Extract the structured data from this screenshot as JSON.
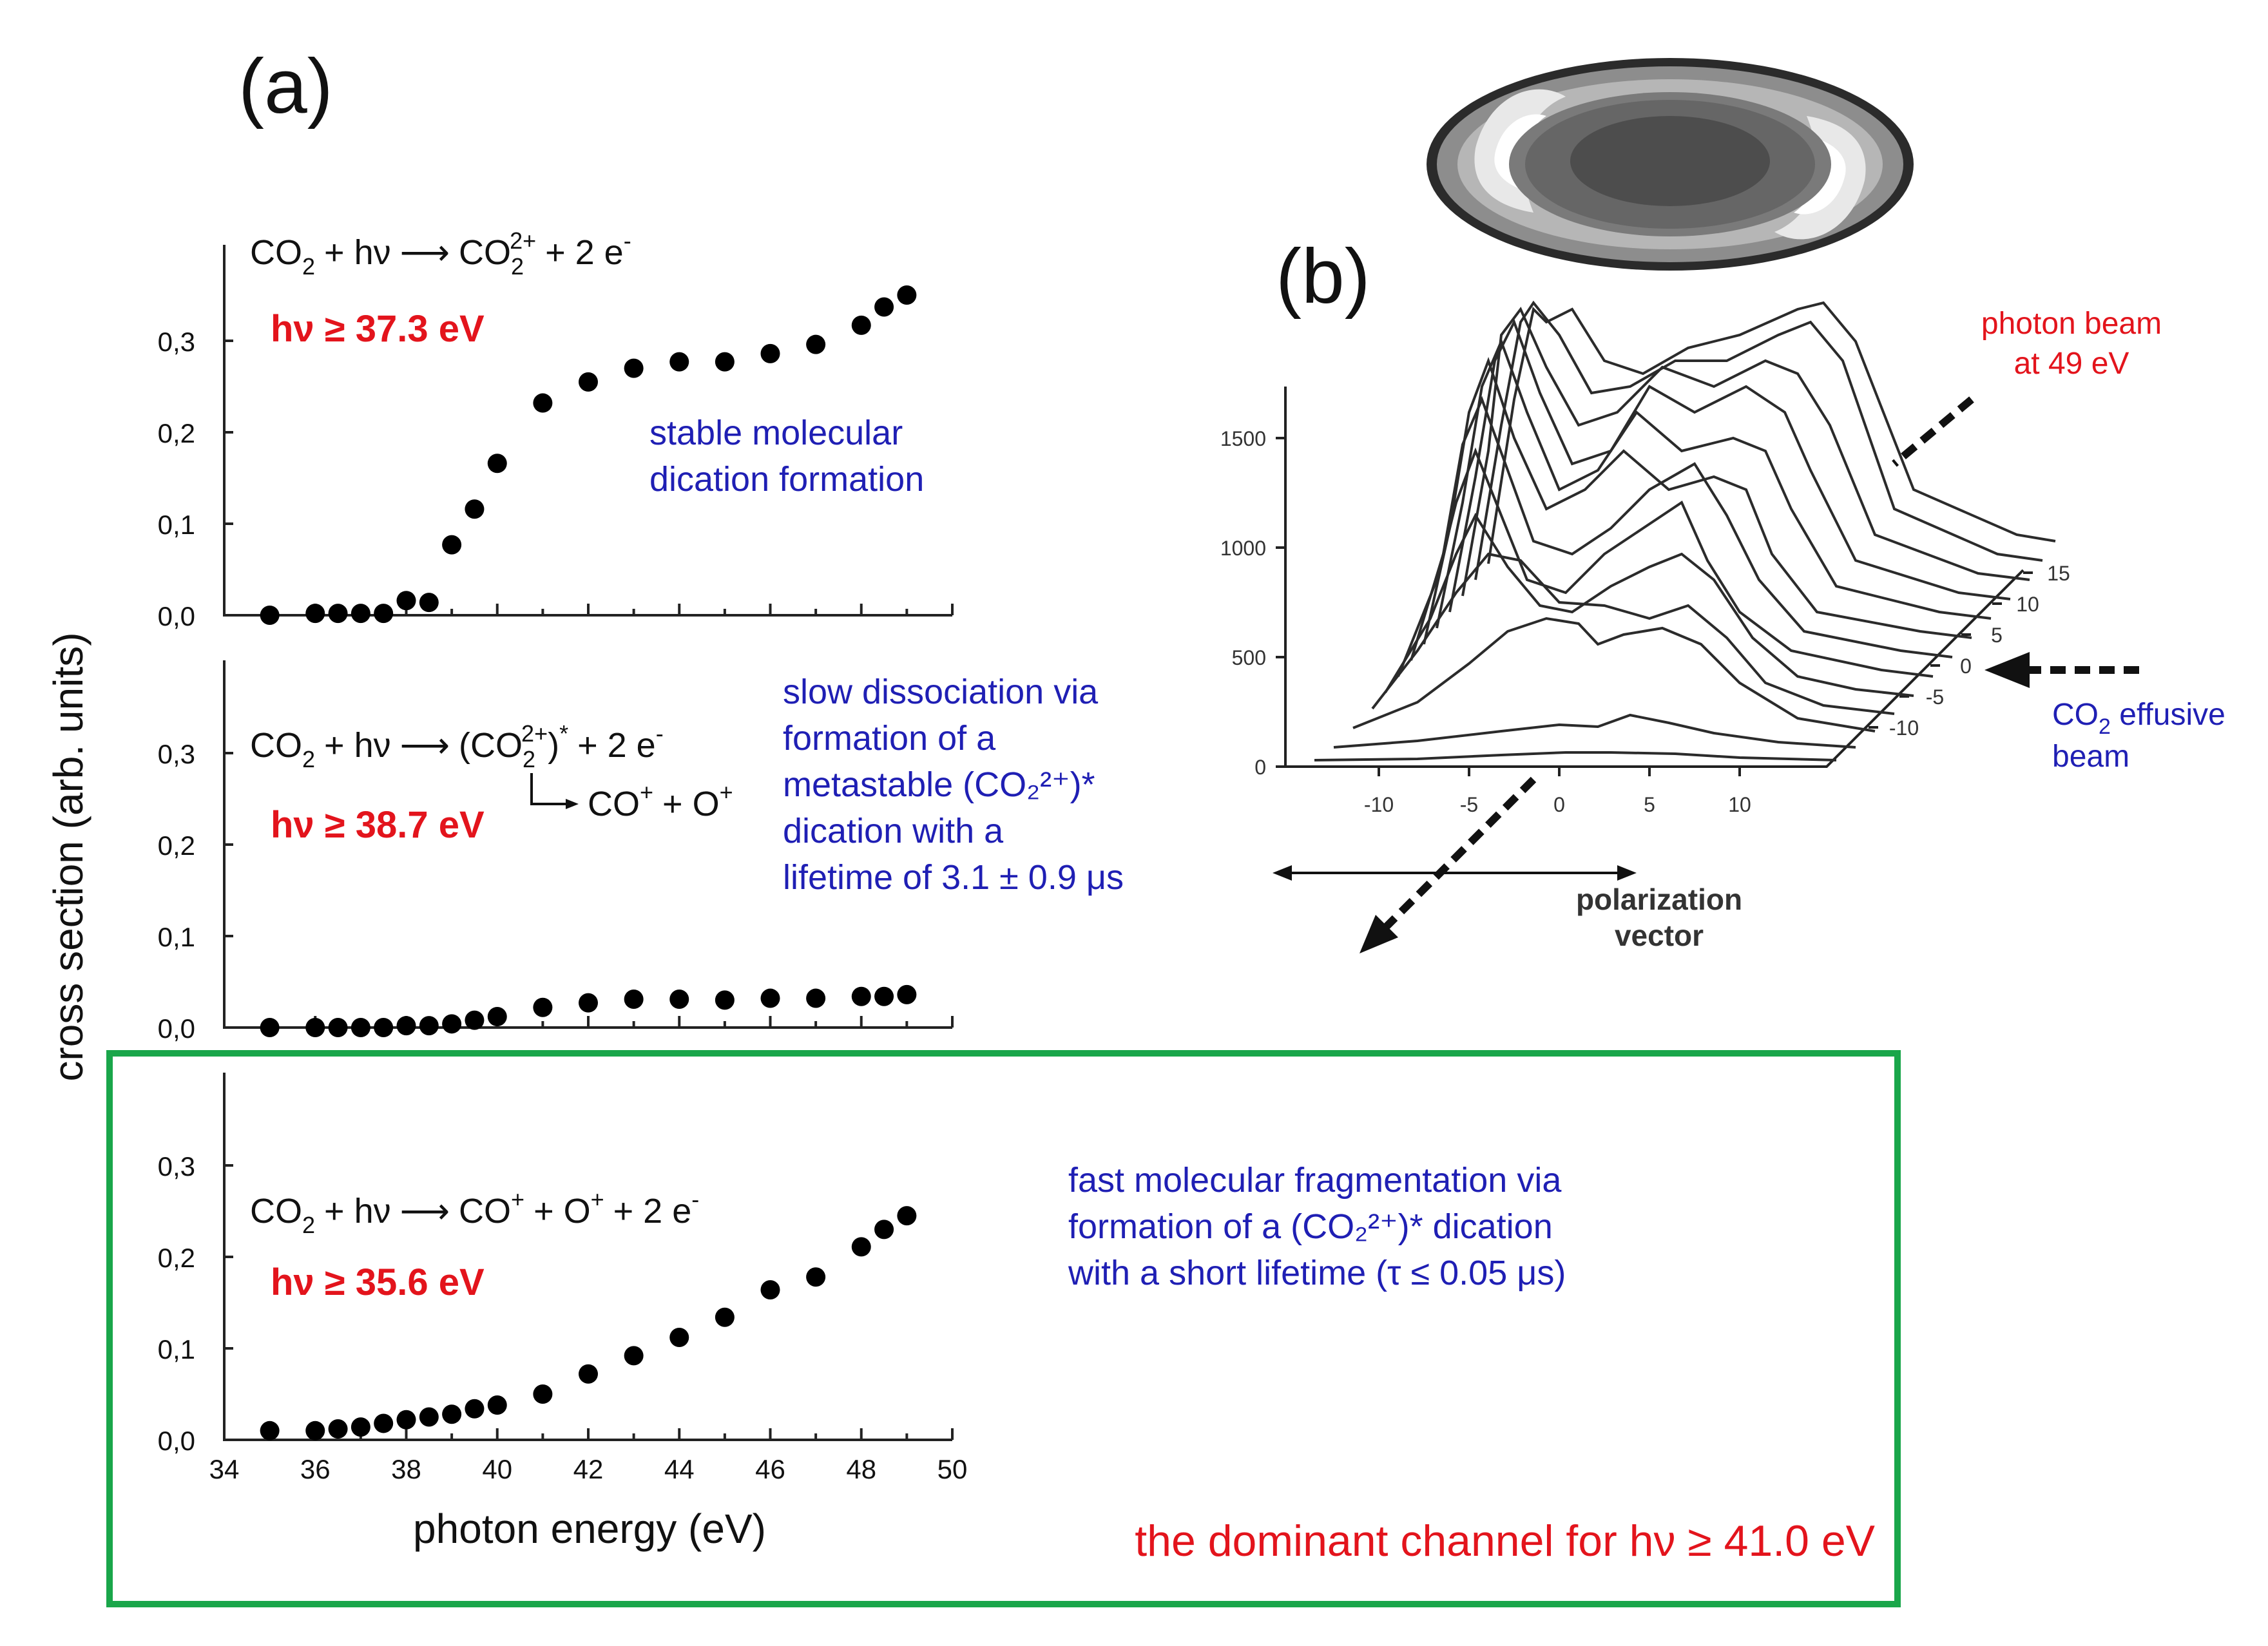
{
  "panel_a_label": "(a)",
  "panel_b_label": "(b)",
  "chart_data": [
    {
      "type": "scatter",
      "panel": "(a) top",
      "reaction": {
        "lhs": "CO",
        "lhs_sub": "2",
        "plus_hv": "+ hν",
        "product": "CO",
        "product_sub": "2",
        "product_sup": "2+",
        "electrons": "+ 2 e",
        "electron_sup": "-"
      },
      "threshold_label": "hν ≥ 37.3 eV",
      "annotation": [
        "stable molecular",
        "dication formation"
      ],
      "y_ticks": [
        "0,0",
        "0,1",
        "0,2",
        "0,3"
      ],
      "ylim": [
        0,
        0.4
      ],
      "xlim": [
        34,
        50
      ],
      "x": [
        35,
        36,
        36.5,
        37,
        37.5,
        38,
        38.5,
        39,
        39.5,
        40,
        41,
        42,
        43,
        44,
        45,
        46,
        47,
        48,
        48.5,
        49
      ],
      "y": [
        0.0,
        0.002,
        0.002,
        0.002,
        0.002,
        0.016,
        0.014,
        0.077,
        0.116,
        0.166,
        0.232,
        0.255,
        0.27,
        0.277,
        0.277,
        0.286,
        0.296,
        0.317,
        0.337,
        0.35
      ]
    },
    {
      "type": "scatter",
      "panel": "(a) middle",
      "reaction": {
        "lhs": "CO",
        "lhs_sub": "2",
        "plus_hv": "+ hν",
        "product": "(CO",
        "product_sub": "2",
        "product_sup": "2+",
        "product_close": ")",
        "product_star": "*",
        "electrons": "+ 2 e",
        "electron_sup": "-"
      },
      "sub_reaction": {
        "text1": "CO",
        "sup1": "+",
        "plus": "+ O",
        "sup2": "+"
      },
      "threshold_label": "hν ≥ 38.7 eV",
      "annotation": [
        "slow dissociation via",
        "formation of a",
        "metastable (CO₂²⁺)*",
        "dication with  a",
        "lifetime of 3.1 ± 0.9 μs"
      ],
      "y_ticks": [
        "0,0",
        "0,1",
        "0,2",
        "0,3"
      ],
      "ylim": [
        0,
        0.4
      ],
      "xlim": [
        34,
        50
      ],
      "x": [
        35,
        36,
        36.5,
        37,
        37.5,
        38,
        38.5,
        39,
        39.5,
        40,
        41,
        42,
        43,
        44,
        45,
        46,
        47,
        48,
        48.5,
        49
      ],
      "y": [
        0.0,
        0.0,
        0.0,
        0.0,
        0.0,
        0.002,
        0.002,
        0.004,
        0.008,
        0.012,
        0.022,
        0.027,
        0.031,
        0.031,
        0.03,
        0.032,
        0.032,
        0.034,
        0.034,
        0.036
      ]
    },
    {
      "type": "scatter",
      "panel": "(a) bottom",
      "reaction": {
        "lhs": "CO",
        "lhs_sub": "2",
        "plus_hv": "+ hν",
        "product": "CO",
        "product_sup": "+",
        "plus_o": "+ O",
        "o_sup": "+",
        "electrons": "+ 2 e",
        "electron_sup": "-"
      },
      "threshold_label": "hν ≥ 35.6 eV",
      "annotation": [
        "fast molecular fragmentation via",
        "formation of a  (CO₂²⁺)* dication",
        "with a short lifetime (τ ≤ 0.05 μs)"
      ],
      "note": "the dominant channel for hν ≥ 41.0 eV",
      "y_ticks": [
        "0,0",
        "0,1",
        "0,2",
        "0,3"
      ],
      "x_ticks": [
        "34",
        "36",
        "38",
        "40",
        "42",
        "44",
        "46",
        "48",
        "50"
      ],
      "xlabel": "photon energy (eV)",
      "ylabel": "cross section (arb. units)",
      "ylim": [
        0,
        0.4
      ],
      "xlim": [
        34,
        50
      ],
      "x": [
        35,
        36,
        36.5,
        37,
        37.5,
        38,
        38.5,
        39,
        39.5,
        40,
        41,
        42,
        43,
        44,
        45,
        46,
        47,
        48,
        48.5,
        49
      ],
      "y": [
        0.01,
        0.01,
        0.012,
        0.014,
        0.018,
        0.022,
        0.025,
        0.028,
        0.034,
        0.038,
        0.05,
        0.072,
        0.092,
        0.112,
        0.134,
        0.164,
        0.178,
        0.211,
        0.23,
        0.245
      ]
    },
    {
      "type": "surface-3d",
      "panel": "(b)",
      "z_ticks": [
        "0",
        "500",
        "1000",
        "1500"
      ],
      "x_ticks": [
        "-10",
        "-5",
        "0",
        "5",
        "10"
      ],
      "depth_ticks": [
        "15",
        "10",
        "5",
        "0",
        "-5",
        "-10"
      ],
      "axis_label": [
        "polarization",
        "vector"
      ],
      "beam_label": [
        "photon beam",
        "at 49 eV"
      ],
      "effusive_label": {
        "text": "CO",
        "sub": "2",
        "rest": " effusive",
        "line2": "beam"
      }
    }
  ]
}
